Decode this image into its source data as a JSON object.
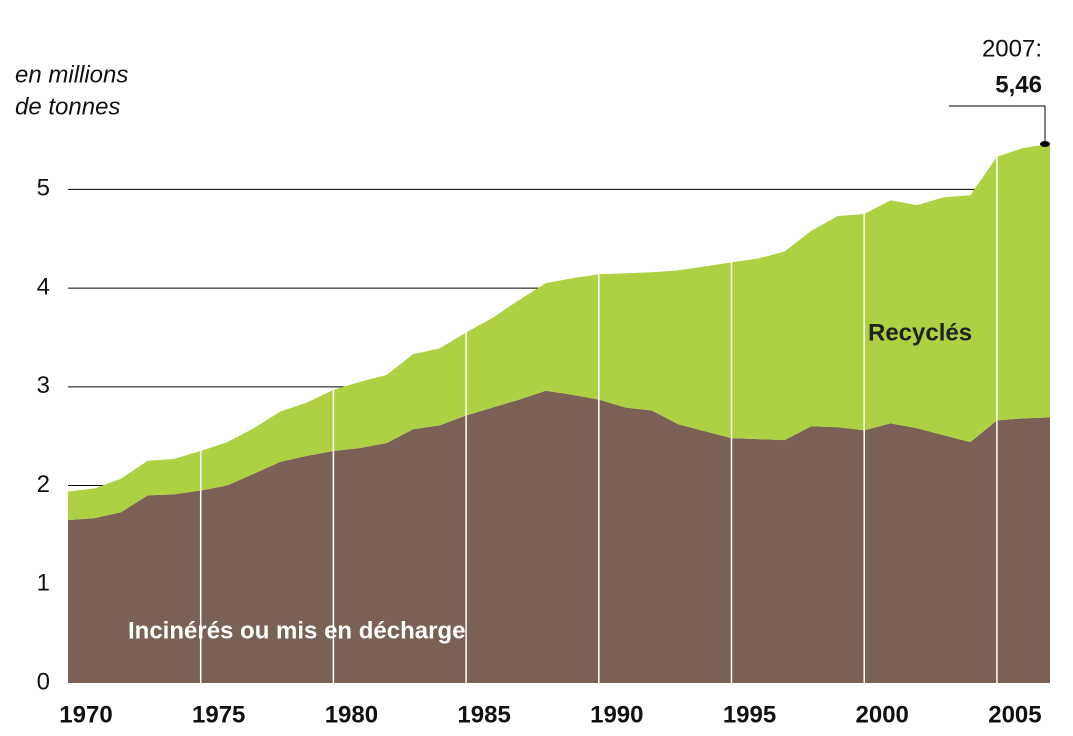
{
  "chart_data": {
    "type": "stacked-area",
    "ylabel": [
      "en millions",
      "de tonnes"
    ],
    "x": [
      1970,
      1971,
      1972,
      1973,
      1974,
      1975,
      1976,
      1977,
      1978,
      1979,
      1980,
      1981,
      1982,
      1983,
      1984,
      1985,
      1986,
      1987,
      1988,
      1989,
      1990,
      1991,
      1992,
      1993,
      1994,
      1995,
      1996,
      1997,
      1998,
      1999,
      2000,
      2001,
      2002,
      2003,
      2004,
      2005,
      2006,
      2007
    ],
    "series": [
      {
        "name": "Incinérés ou mis en décharge",
        "color": "#7a6055",
        "values": [
          1.65,
          1.67,
          1.73,
          1.9,
          1.91,
          1.95,
          2.0,
          2.12,
          2.24,
          2.3,
          2.35,
          2.38,
          2.43,
          2.57,
          2.61,
          2.71,
          2.79,
          2.87,
          2.96,
          2.92,
          2.87,
          2.79,
          2.76,
          2.62,
          2.55,
          2.48,
          2.47,
          2.46,
          2.6,
          2.59,
          2.56,
          2.63,
          2.58,
          2.51,
          2.44,
          2.66,
          2.68,
          2.69
        ]
      },
      {
        "name": "Recyclés",
        "color": "#add142",
        "values": [
          0.29,
          0.3,
          0.34,
          0.35,
          0.36,
          0.4,
          0.44,
          0.46,
          0.51,
          0.54,
          0.62,
          0.67,
          0.69,
          0.76,
          0.78,
          0.84,
          0.91,
          1.01,
          1.09,
          1.18,
          1.27,
          1.36,
          1.4,
          1.56,
          1.67,
          1.78,
          1.83,
          1.91,
          1.98,
          2.14,
          2.19,
          2.26,
          2.26,
          2.41,
          2.5,
          2.67,
          2.74,
          2.77
        ]
      }
    ],
    "xlim": [
      1970,
      2007
    ],
    "xticks": [
      1970,
      1975,
      1980,
      1985,
      1990,
      1995,
      2000,
      2005
    ],
    "ylim": [
      0,
      5.5
    ],
    "yticks": [
      0,
      1,
      2,
      3,
      4,
      5
    ],
    "grid": true,
    "annotation": {
      "label": "2007:",
      "value_label": "5,46"
    }
  }
}
